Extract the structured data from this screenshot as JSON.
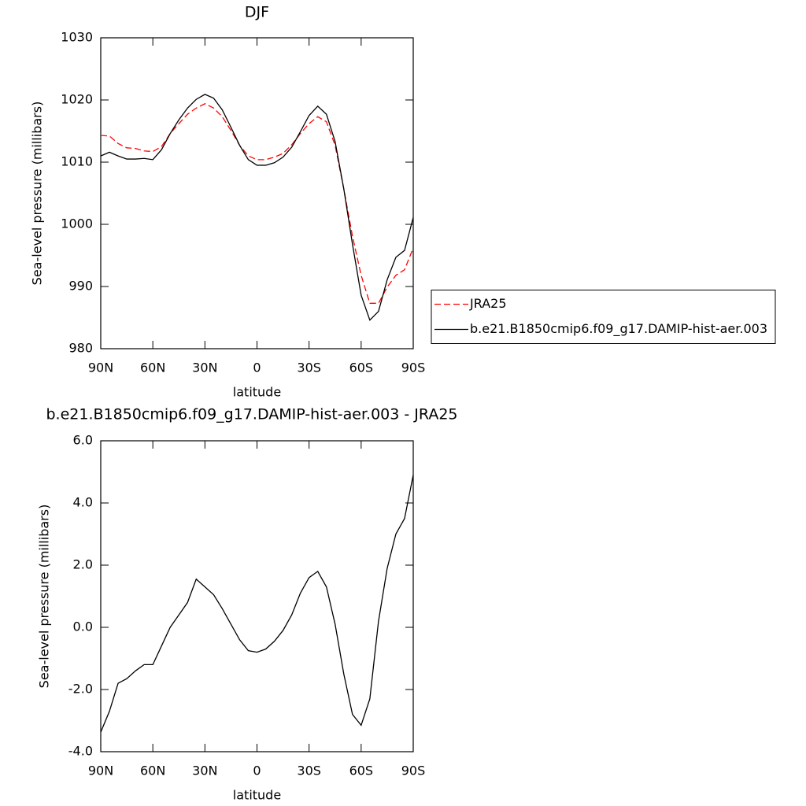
{
  "chart_data": [
    {
      "type": "line",
      "title": "DJF",
      "x_label": "latitude",
      "y_label": "Sea-level pressure (millibars)",
      "x": [
        90,
        85,
        80,
        75,
        70,
        65,
        60,
        55,
        50,
        45,
        40,
        35,
        30,
        25,
        20,
        15,
        10,
        5,
        0,
        -5,
        -10,
        -15,
        -20,
        -25,
        -30,
        -35,
        -40,
        -45,
        -50,
        -55,
        -60,
        -65,
        -70,
        -75,
        -80,
        -85,
        -90
      ],
      "series": [
        {
          "name": "JRA25",
          "color": "#ff0000",
          "dash": true,
          "values": [
            1014.3,
            1014.2,
            1013.0,
            1012.3,
            1012.2,
            1011.8,
            1011.7,
            1012.5,
            1014.6,
            1016.2,
            1017.7,
            1018.7,
            1019.4,
            1018.7,
            1017.3,
            1015.1,
            1012.7,
            1011.0,
            1010.4,
            1010.4,
            1010.8,
            1011.4,
            1012.8,
            1014.6,
            1016.2,
            1017.3,
            1016.5,
            1012.7,
            1005.7,
            998.1,
            991.8,
            987.3,
            987.3,
            989.9,
            991.8,
            992.7,
            996.2
          ]
        },
        {
          "name": "b.e21.B1850cmip6.f09_g17.DAMIP-hist-aer.003",
          "color": "#000000",
          "dash": false,
          "values": [
            1011.0,
            1011.6,
            1011.0,
            1010.5,
            1010.5,
            1010.6,
            1010.4,
            1012.0,
            1014.6,
            1016.8,
            1018.7,
            1020.1,
            1020.9,
            1020.3,
            1018.4,
            1015.6,
            1012.7,
            1010.4,
            1009.5,
            1009.5,
            1009.9,
            1010.8,
            1012.4,
            1014.9,
            1017.5,
            1019.0,
            1017.7,
            1013.3,
            1005.7,
            996.8,
            988.6,
            984.6,
            986.0,
            991.1,
            994.7,
            995.8,
            1001.1
          ]
        }
      ],
      "xlim": [
        90,
        -90
      ],
      "xticks": [
        {
          "value": 90,
          "label": "90N"
        },
        {
          "value": 60,
          "label": "60N"
        },
        {
          "value": 30,
          "label": "30N"
        },
        0,
        {
          "value": -30,
          "label": "30S"
        },
        {
          "value": -60,
          "label": "60S"
        },
        {
          "value": -90,
          "label": "90S"
        }
      ],
      "ylim": [
        980,
        1030
      ],
      "yticks": [
        980,
        990,
        1000,
        1010,
        1020,
        1030
      ],
      "legend": "right"
    },
    {
      "type": "line",
      "title": "b.e21.B1850cmip6.f09_g17.DAMIP-hist-aer.003 - JRA25",
      "x_label": "latitude",
      "y_label": "Sea-level pressure (millibars)",
      "x": [
        90,
        85,
        80,
        75,
        70,
        65,
        60,
        55,
        50,
        45,
        40,
        35,
        30,
        25,
        20,
        15,
        10,
        5,
        0,
        -5,
        -10,
        -15,
        -20,
        -25,
        -30,
        -35,
        -40,
        -45,
        -50,
        -55,
        -60,
        -65,
        -70,
        -75,
        -80,
        -85,
        -90
      ],
      "color": "#000000",
      "values": [
        -3.37,
        -2.7,
        -1.8,
        -1.65,
        -1.4,
        -1.2,
        -1.2,
        -0.6,
        0.0,
        0.4,
        0.8,
        1.55,
        1.3,
        1.05,
        0.6,
        0.1,
        -0.4,
        -0.75,
        -0.8,
        -0.7,
        -0.45,
        -0.1,
        0.4,
        1.1,
        1.6,
        1.8,
        1.3,
        0.1,
        -1.5,
        -2.8,
        -3.15,
        -2.3,
        0.2,
        1.9,
        3.0,
        3.5,
        4.9
      ],
      "xlim": [
        90,
        -90
      ],
      "xticks": [
        {
          "value": 90,
          "label": "90N"
        },
        {
          "value": 60,
          "label": "60N"
        },
        {
          "value": 30,
          "label": "30N"
        },
        0,
        {
          "value": -30,
          "label": "30S"
        },
        {
          "value": -60,
          "label": "60S"
        },
        {
          "value": -90,
          "label": "90S"
        }
      ],
      "ylim": [
        -4,
        6
      ],
      "yticks": [
        {
          "value": -4,
          "label": "-4.0"
        },
        {
          "value": -2,
          "label": "-2.0"
        },
        {
          "value": 0,
          "label": "0.0"
        },
        {
          "value": 2,
          "label": "2.0"
        },
        {
          "value": 4,
          "label": "4.0"
        },
        {
          "value": 6,
          "label": "6.0"
        }
      ]
    }
  ]
}
